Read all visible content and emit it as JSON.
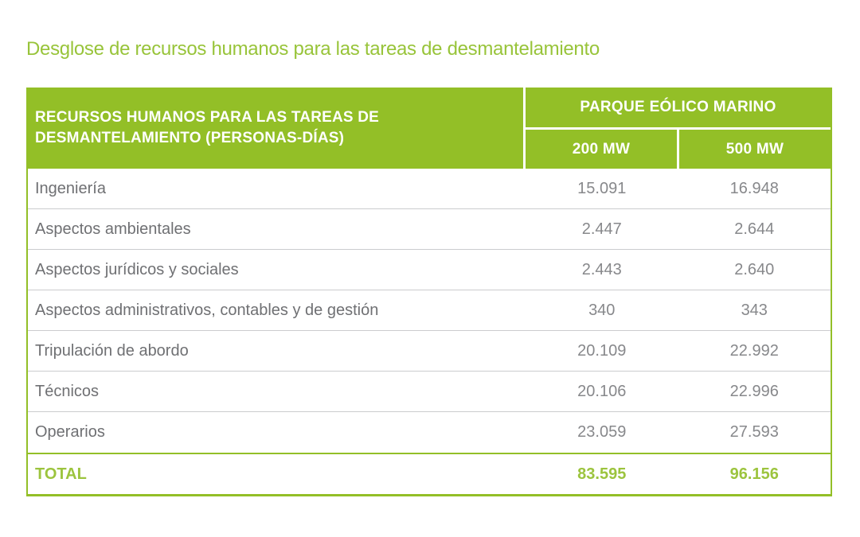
{
  "page_title": "Desglose de recursos humanos para las tareas de desmantelamiento",
  "colors": {
    "brand_green": "#93BF27",
    "text_green": "#9CC43E",
    "label_gray": "#6F7073",
    "number_gray": "#87888B",
    "row_divider_gray": "#CBCCCE",
    "header_text": "#FFFFFF"
  },
  "table": {
    "header": {
      "col_main": "RECURSOS HUMANOS PARA LAS TAREAS DE DESMANTELAMIENTO (PERSONAS-DÍAS)",
      "group": "PARQUE EÓLICO MARINO",
      "col_200": "200 MW",
      "col_500": "500 MW"
    },
    "rows": [
      {
        "label": "Ingeniería",
        "mw200": "15.091",
        "mw500": "16.948"
      },
      {
        "label": "Aspectos ambientales",
        "mw200": "2.447",
        "mw500": "2.644"
      },
      {
        "label": "Aspectos jurídicos y sociales",
        "mw200": "2.443",
        "mw500": "2.640"
      },
      {
        "label": "Aspectos administrativos, contables y de gestión",
        "mw200": "340",
        "mw500": "343"
      },
      {
        "label": "Tripulación de abordo",
        "mw200": "20.109",
        "mw500": "22.992"
      },
      {
        "label": "Técnicos",
        "mw200": "20.106",
        "mw500": "22.996"
      },
      {
        "label": "Operarios",
        "mw200": "23.059",
        "mw500": "27.593"
      }
    ],
    "total": {
      "label": "TOTAL",
      "mw200": "83.595",
      "mw500": "96.156"
    }
  },
  "chart_data": {
    "type": "table",
    "title": "Desglose de recursos humanos para las tareas de desmantelamiento",
    "unit": "personas-días",
    "columns": [
      "Recursos humanos para las tareas de desmantelamiento (personas-días)",
      "Parque eólico marino 200 MW",
      "Parque eólico marino 500 MW"
    ],
    "categories": [
      "Ingeniería",
      "Aspectos ambientales",
      "Aspectos jurídicos y sociales",
      "Aspectos administrativos, contables y de gestión",
      "Tripulación de abordo",
      "Técnicos",
      "Operarios"
    ],
    "series": [
      {
        "name": "200 MW",
        "values": [
          15091,
          2447,
          2443,
          340,
          20109,
          20106,
          23059
        ],
        "total": 83595
      },
      {
        "name": "500 MW",
        "values": [
          16948,
          2644,
          2640,
          343,
          22992,
          22996,
          27593
        ],
        "total": 96156
      }
    ]
  }
}
